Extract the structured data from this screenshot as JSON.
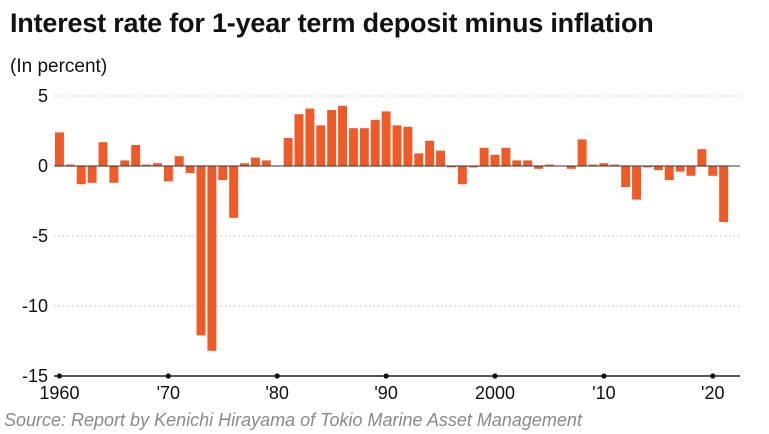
{
  "chart_data": {
    "type": "bar",
    "title": "Interest rate for 1-year term deposit minus inflation",
    "subtitle": "(In percent)",
    "source": "Source: Report by Kenichi Hirayama of Tokio Marine Asset Management",
    "xlabel": "",
    "ylabel": "",
    "ylim": [
      -15,
      5
    ],
    "y_ticks": [
      5,
      0,
      -5,
      -10,
      -15
    ],
    "y_tick_labels": [
      "5",
      "0",
      "-5",
      "-10",
      "-15"
    ],
    "x_tick_years": [
      1960,
      1970,
      1980,
      1990,
      2000,
      2010,
      2020
    ],
    "x_tick_labels": [
      "1960",
      "'70",
      "'80",
      "'90",
      "2000",
      "'10",
      "'20"
    ],
    "bar_color": "#f05a28",
    "grid": true,
    "categories": [
      1960,
      1961,
      1962,
      1963,
      1964,
      1965,
      1966,
      1967,
      1968,
      1969,
      1970,
      1971,
      1972,
      1973,
      1974,
      1975,
      1976,
      1977,
      1978,
      1979,
      1980,
      1981,
      1982,
      1983,
      1984,
      1985,
      1986,
      1987,
      1988,
      1989,
      1990,
      1991,
      1992,
      1993,
      1994,
      1995,
      1996,
      1997,
      1998,
      1999,
      2000,
      2001,
      2002,
      2003,
      2004,
      2005,
      2006,
      2007,
      2008,
      2009,
      2010,
      2011,
      2012,
      2013,
      2014,
      2015,
      2016,
      2017,
      2018,
      2019,
      2020,
      2021,
      2022
    ],
    "values": [
      2.4,
      0.1,
      -1.3,
      -1.2,
      1.7,
      -1.2,
      0.4,
      1.5,
      0.1,
      0.2,
      -1.1,
      0.7,
      -0.5,
      -12.1,
      -13.2,
      -1.0,
      -3.7,
      0.2,
      0.6,
      0.4,
      0.0,
      2.0,
      3.7,
      4.1,
      2.9,
      4.0,
      4.3,
      2.7,
      2.7,
      3.3,
      3.9,
      2.9,
      2.8,
      0.9,
      1.8,
      1.1,
      -0.1,
      -1.3,
      -0.1,
      1.3,
      0.8,
      1.3,
      0.4,
      0.4,
      -0.2,
      0.1,
      0.0,
      -0.2,
      1.9,
      0.1,
      0.2,
      0.1,
      -1.5,
      -2.4,
      -0.1,
      -0.3,
      -1.0,
      -0.4,
      -0.7,
      1.2,
      -0.7,
      -4.0,
      0.0
    ]
  }
}
